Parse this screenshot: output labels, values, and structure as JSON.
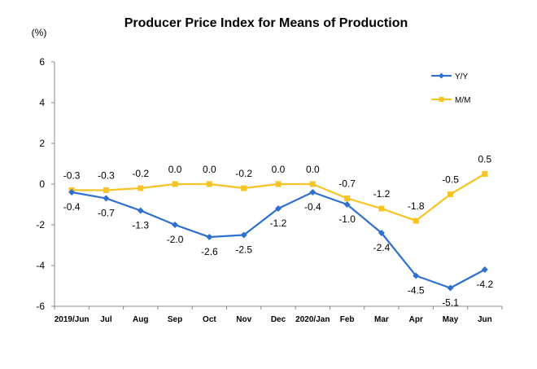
{
  "chart_data": {
    "type": "line",
    "title": "Producer Price Index for Means of Production",
    "ylabel": "(%)",
    "xlabel": "",
    "categories": [
      "2019/Jun",
      "Jul",
      "Aug",
      "Sep",
      "Oct",
      "Nov",
      "Dec",
      "2020/Jan",
      "Feb",
      "Mar",
      "Apr",
      "May",
      "Jun"
    ],
    "ylim": [
      -6,
      6
    ],
    "yticks": [
      6,
      4,
      2,
      0,
      -2,
      -4,
      -6
    ],
    "grid": false,
    "legend_position": "top-right",
    "series": [
      {
        "name": "Y/Y",
        "color": "#2e6fd0",
        "marker": "diamond",
        "values": [
          -0.4,
          -0.7,
          -1.3,
          -2.0,
          -2.6,
          -2.5,
          -1.2,
          -0.4,
          -1.0,
          -2.4,
          -4.5,
          -5.1,
          -4.2
        ],
        "labels": [
          "-0.4",
          "-0.7",
          "-1.3",
          "-2.0",
          "-2.6",
          "-2.5",
          "-1.2",
          "-0.4",
          "-1.0",
          "-2.4",
          "-4.5",
          "-5.1",
          "-4.2"
        ]
      },
      {
        "name": "M/M",
        "color": "#f7c325",
        "marker": "square",
        "values": [
          -0.3,
          -0.3,
          -0.2,
          0.0,
          0.0,
          -0.2,
          0.0,
          0.0,
          -0.7,
          -1.2,
          -1.8,
          -0.5,
          0.5
        ],
        "labels": [
          "-0.3",
          "-0.3",
          "-0.2",
          "0.0",
          "0.0",
          "-0.2",
          "0.0",
          "0.0",
          "-0.7",
          "-1.2",
          "-1.8",
          "-0.5",
          "0.5"
        ]
      }
    ]
  }
}
